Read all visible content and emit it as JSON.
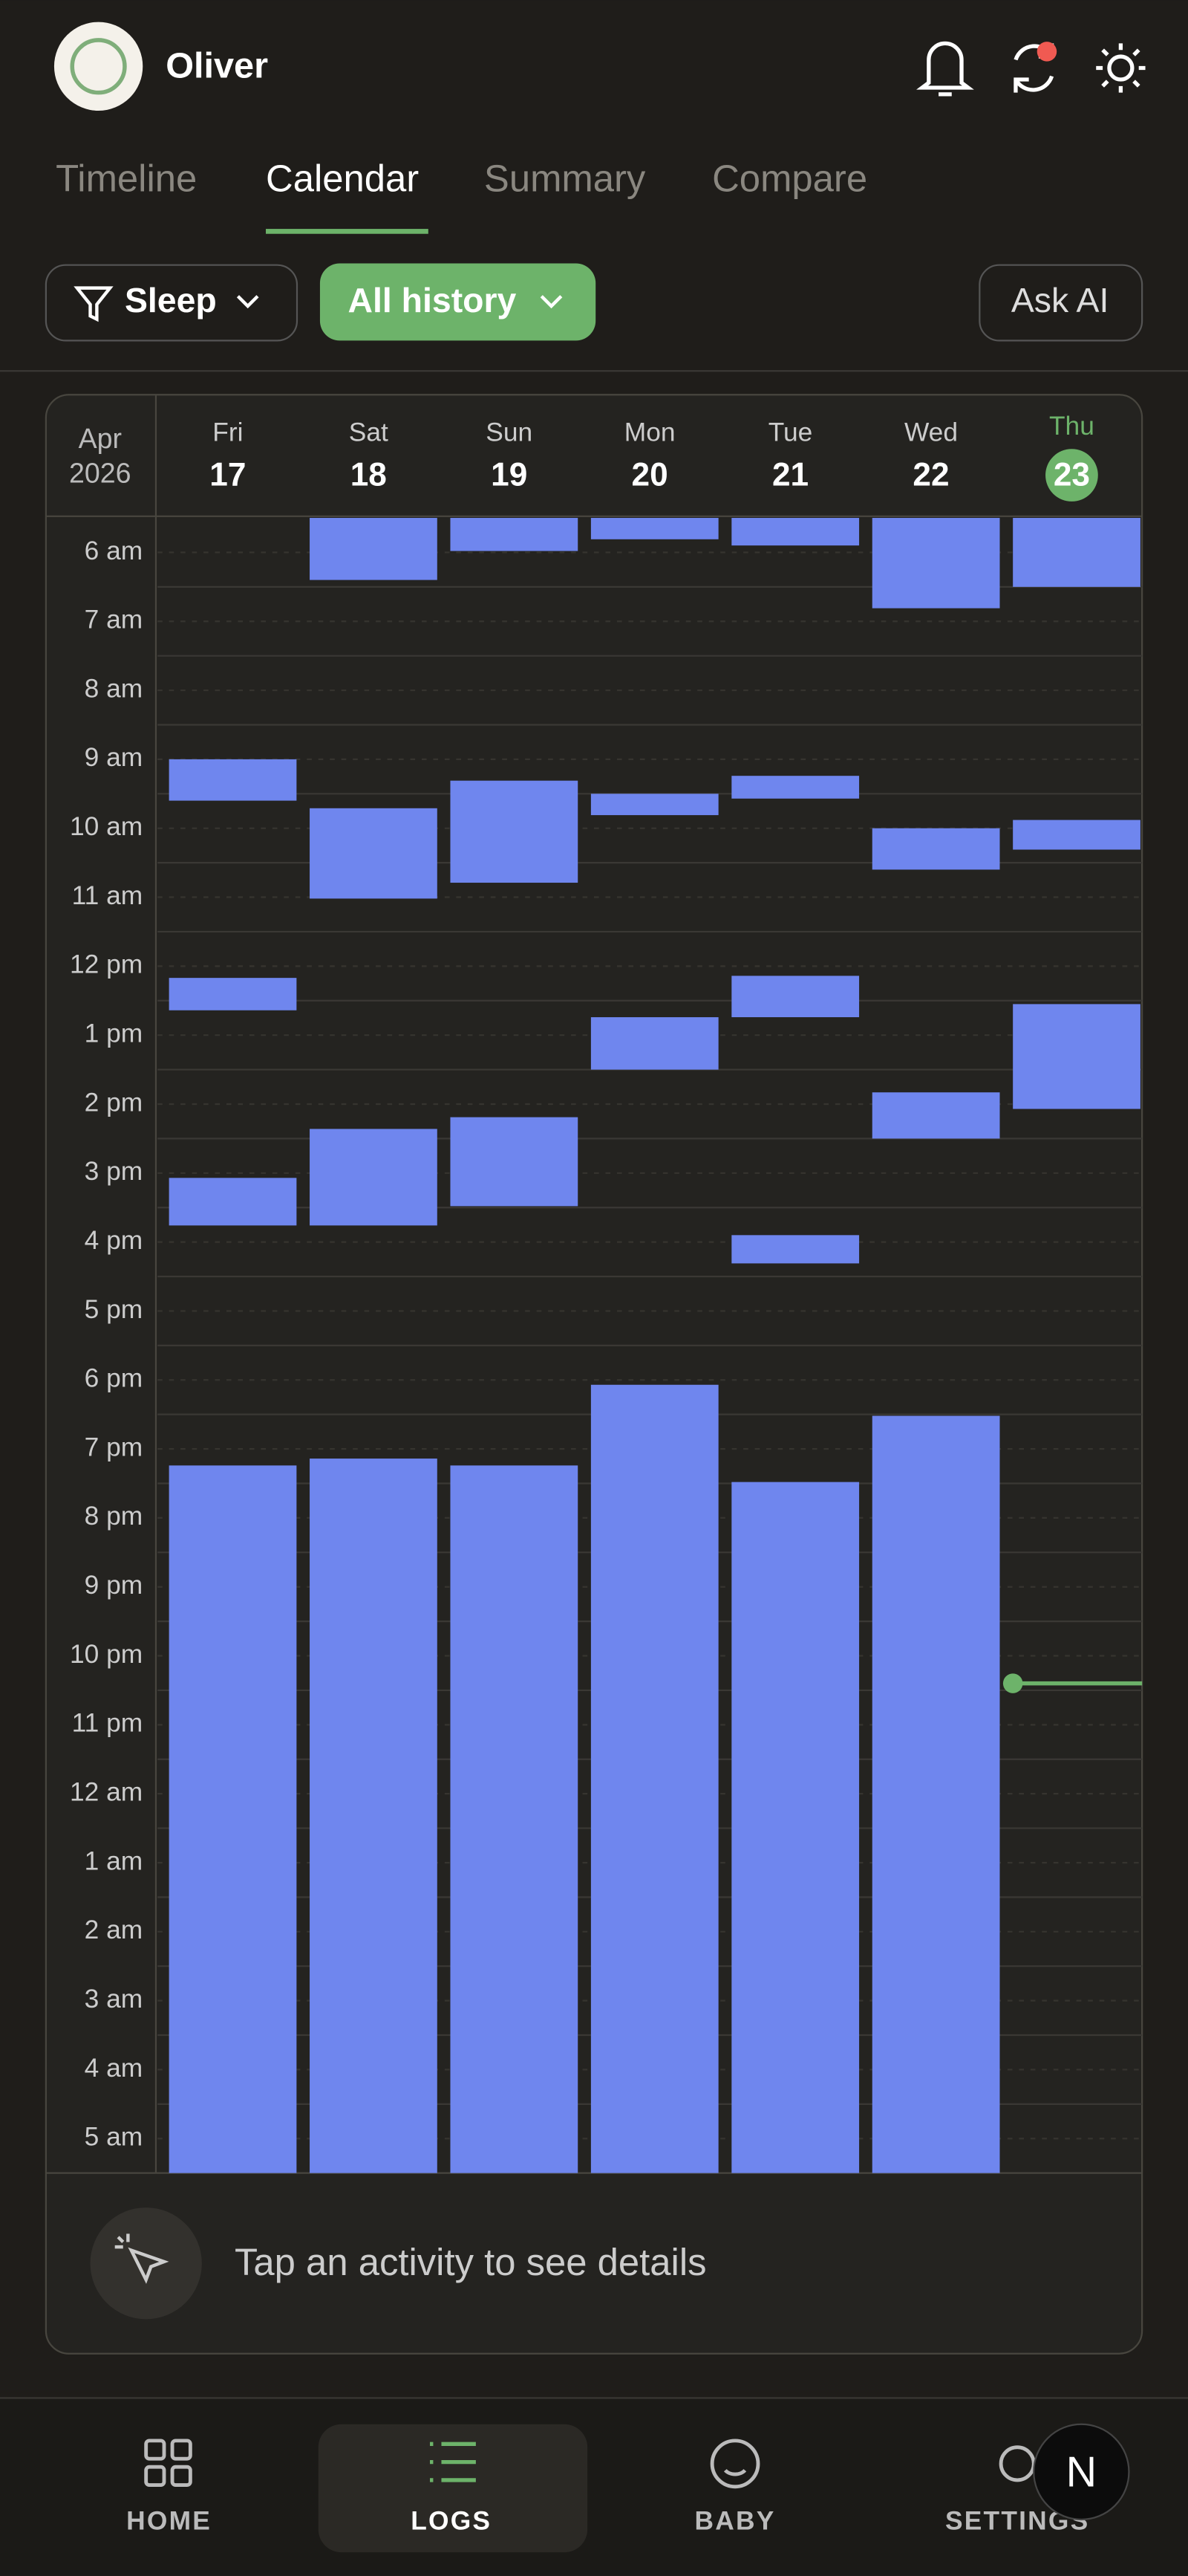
{
  "header": {
    "name": "Oliver"
  },
  "tabs": [
    "Timeline",
    "Calendar",
    "Summary",
    "Compare"
  ],
  "filters": {
    "activity": "Sleep",
    "range": "All history",
    "ask": "Ask AI"
  },
  "calendar": {
    "month": "Apr",
    "year": 2026,
    "days": [
      {
        "name": "Fri",
        "date": 17,
        "sessions": [
          {
            "start": 3.5,
            "end": 4.1
          },
          {
            "start": 6.67,
            "end": 7.14
          },
          {
            "start": 9.57,
            "end": 10.26
          },
          {
            "start": 13.74,
            "end": 24
          }
        ]
      },
      {
        "name": "Sat",
        "date": 18,
        "sessions": [
          {
            "start": 0,
            "end": 0.9
          },
          {
            "start": 4.21,
            "end": 5.52
          },
          {
            "start": 8.86,
            "end": 10.26
          },
          {
            "start": 13.64,
            "end": 24
          }
        ]
      },
      {
        "name": "Sun",
        "date": 19,
        "sessions": [
          {
            "start": 0,
            "end": 0.48
          },
          {
            "start": 3.81,
            "end": 5.29
          },
          {
            "start": 8.69,
            "end": 9.98
          },
          {
            "start": 13.74,
            "end": 24
          }
        ]
      },
      {
        "name": "Mon",
        "date": 20,
        "sessions": [
          {
            "start": 0,
            "end": 0.31
          },
          {
            "start": 4,
            "end": 4.31
          },
          {
            "start": 7.24,
            "end": 8
          },
          {
            "start": 12.57,
            "end": 24
          }
        ]
      },
      {
        "name": "Tue",
        "date": 21,
        "sessions": [
          {
            "start": 0,
            "end": 0.4
          },
          {
            "start": 3.74,
            "end": 4.07
          },
          {
            "start": 6.64,
            "end": 7.24
          },
          {
            "start": 10.4,
            "end": 10.81
          },
          {
            "start": 13.98,
            "end": 24
          }
        ]
      },
      {
        "name": "Wed",
        "date": 22,
        "sessions": [
          {
            "start": 0,
            "end": 1.31
          },
          {
            "start": 4.5,
            "end": 5.1
          },
          {
            "start": 8.33,
            "end": 9
          },
          {
            "start": 13.02,
            "end": 24
          }
        ]
      },
      {
        "name": "Thu",
        "date": 23,
        "today": true,
        "now": 16.9,
        "sessions": [
          {
            "start": 0,
            "end": 1
          },
          {
            "start": 4.38,
            "end": 4.81
          },
          {
            "start": 7.05,
            "end": 8.57
          }
        ]
      }
    ],
    "hour_labels": [
      "6 am",
      "7 am",
      "8 am",
      "9 am",
      "10 am",
      "11 am",
      "12 pm",
      "1 pm",
      "2 pm",
      "3 pm",
      "4 pm",
      "5 pm",
      "6 pm",
      "7 pm",
      "8 pm",
      "9 pm",
      "10 pm",
      "11 pm",
      "12 am",
      "1 am",
      "2 am",
      "3 am",
      "4 am",
      "5 am"
    ],
    "hint": "Tap an activity to see details"
  },
  "nav": [
    "HOME",
    "LOGS",
    "BABY",
    "SETTINGS"
  ],
  "avatar": "N"
}
